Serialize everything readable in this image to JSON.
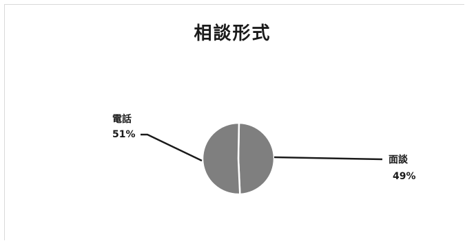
{
  "chart_data": {
    "type": "pie",
    "title": "相談形式",
    "categories": [
      "面談",
      "電話"
    ],
    "values": [
      49,
      51
    ],
    "data_labels": [
      {
        "name": "面談",
        "pct": "49%"
      },
      {
        "name": "電話",
        "pct": "51%"
      }
    ],
    "slice_color": "#7f7f7f",
    "border_color": "#ffffff",
    "leader_color": "#1a1a1a"
  }
}
